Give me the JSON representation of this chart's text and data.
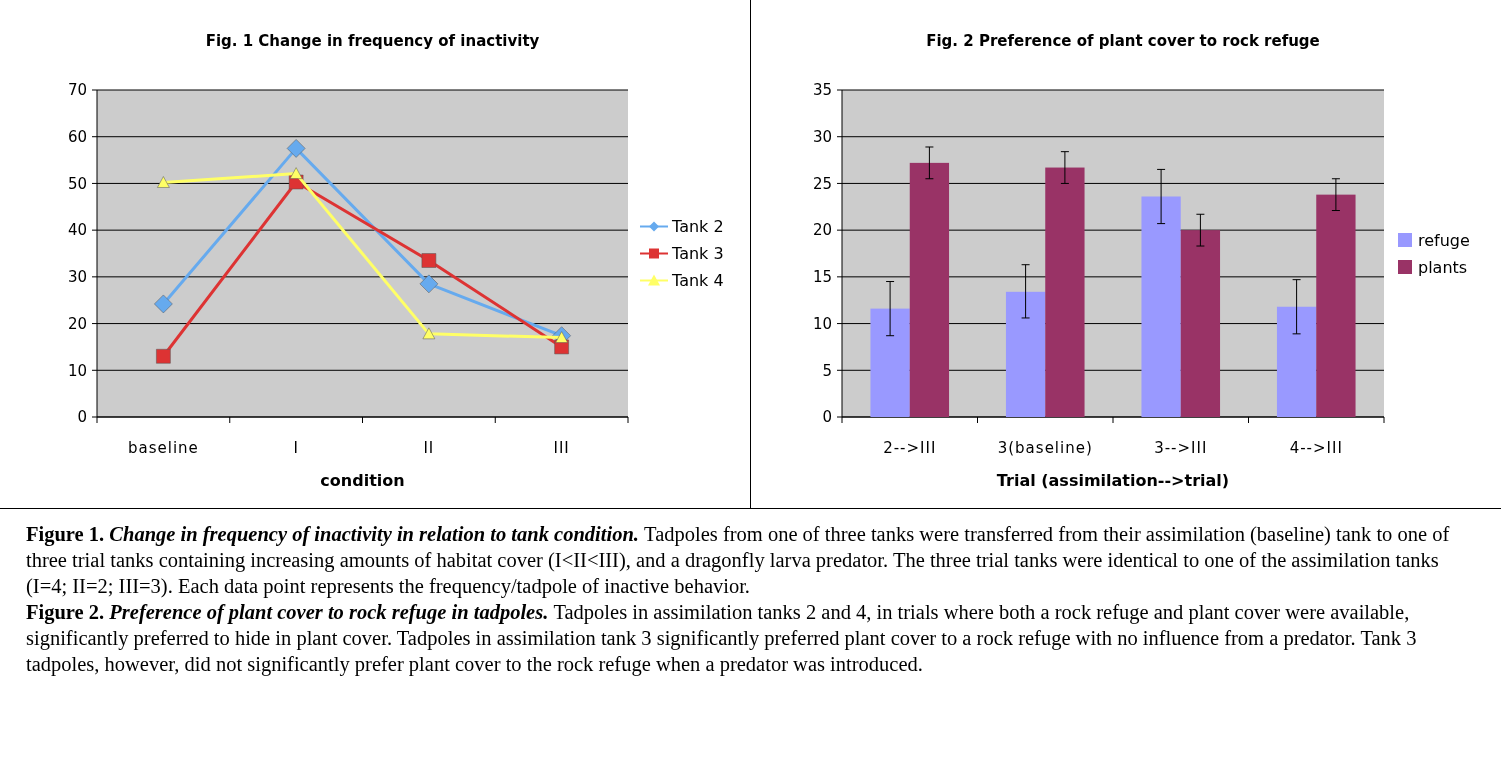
{
  "chart_data": [
    {
      "type": "line",
      "title": "Fig. 1 Change in frequency of inactivity",
      "xlabel": "condition",
      "categories": [
        "baseline",
        "I",
        "II",
        "III"
      ],
      "ylim": [
        0,
        70
      ],
      "yticks": [
        0,
        10,
        20,
        30,
        40,
        50,
        60,
        70
      ],
      "grid": "y",
      "legend": "right",
      "line_style": "solid",
      "series": [
        {
          "name": "Tank 2",
          "color": "#66aaee",
          "marker": "diamond",
          "values": [
            24.2,
            57.5,
            28.5,
            17.4
          ]
        },
        {
          "name": "Tank 3",
          "color": "#dd3333",
          "marker": "square",
          "values": [
            13,
            50.3,
            33.5,
            15
          ]
        },
        {
          "name": "Tank 4",
          "color": "#ffff66",
          "marker": "triangle",
          "values": [
            50.2,
            52.1,
            17.8,
            17.0
          ]
        }
      ],
      "annotations": [
        "Figure 1.",
        "Change in frequency of inactivity in relation to tank condition.",
        "Tadpoles from one of three tanks were transferred from their assimilation (baseline) tank to one of three trial tanks containing increasing amounts of habitat cover (I<II<III), and a dragonfly larva predator. The three trial tanks were identical to one of the assimilation tanks (I=4; II=2; III=3). Each data point represents the frequency/tadpole of inactive behavior."
      ]
    },
    {
      "type": "bar",
      "title": "Fig. 2 Preference of plant cover to rock refuge",
      "xlabel": "Trial (assimilation-->trial)",
      "categories": [
        "2-->III",
        "3(baseline)",
        "3-->III",
        "4-->III"
      ],
      "ylim": [
        0,
        35
      ],
      "yticks": [
        0,
        5,
        10,
        15,
        20,
        25,
        30,
        35
      ],
      "grid": "y",
      "legend": "right",
      "series": [
        {
          "name": "refuge",
          "color": "#9999ff",
          "values": [
            11.6,
            13.4,
            23.6,
            11.8
          ],
          "errors": [
            [
              8.7,
              14.5
            ],
            [
              10.6,
              16.3
            ],
            [
              20.7,
              26.5
            ],
            [
              8.9,
              14.7
            ]
          ]
        },
        {
          "name": "plants",
          "color": "#993366",
          "values": [
            27.2,
            26.7,
            20.0,
            23.8
          ],
          "errors": [
            [
              25.5,
              28.9
            ],
            [
              25.0,
              28.4
            ],
            [
              18.3,
              21.7
            ],
            [
              22.1,
              25.5
            ]
          ]
        }
      ],
      "annotations": [
        "Figure 2.",
        "Preference of plant cover to rock refuge in tadpoles.",
        "Tadpoles in assimilation tanks 2 and 4, in trials where both a rock refuge and plant cover were available, significantly preferred to hide in plant cover. Tadpoles in assimilation tank 3 significantly preferred plant cover to a rock refuge with no influence from a predator. Tank 3 tadpoles, however, did not significantly prefer plant cover to the rock refuge when a predator was introduced."
      ]
    }
  ]
}
